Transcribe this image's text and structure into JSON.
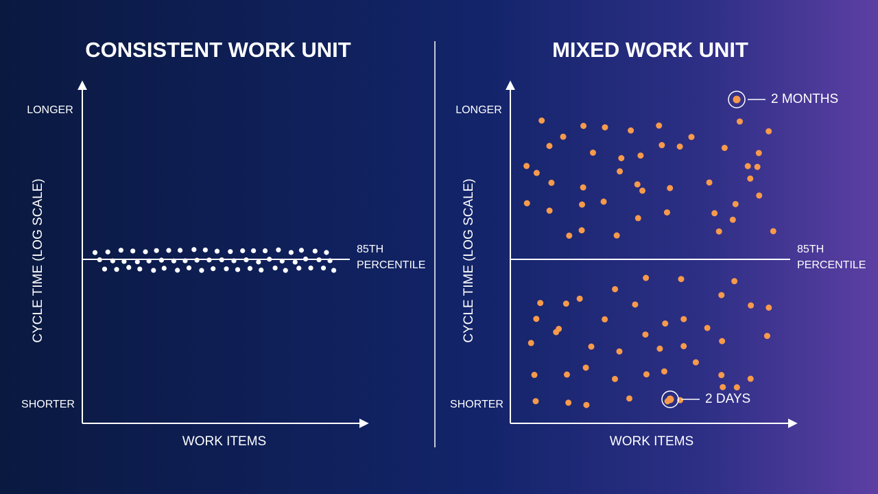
{
  "panels": [
    {
      "title": "CONSISTENT WORK UNIT",
      "y_axis_label": "CYCLE TIME (LOG SCALE)",
      "y_top": "LONGER",
      "y_bottom": "SHORTER",
      "x_axis_label": "WORK ITEMS",
      "threshold_label": [
        "85TH",
        "PERCENTILE"
      ]
    },
    {
      "title": "MIXED WORK UNIT",
      "y_axis_label": "CYCLE TIME (LOG SCALE)",
      "y_top": "LONGER",
      "y_bottom": "SHORTER",
      "x_axis_label": "WORK ITEMS",
      "threshold_label": [
        "85TH",
        "PERCENTILE"
      ],
      "annotations": [
        "2 MONTHS",
        "2 DAYS"
      ]
    }
  ]
}
